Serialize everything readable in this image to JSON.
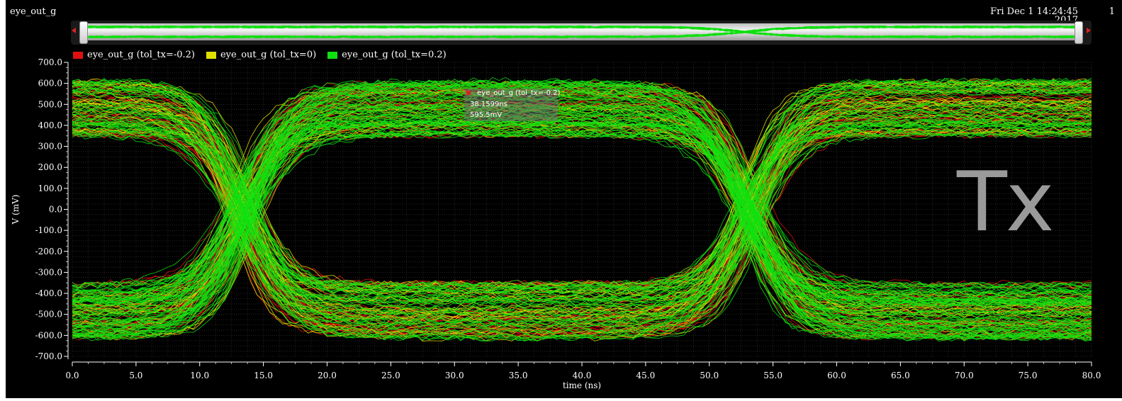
{
  "window": {
    "title": "eye_out_g",
    "timestamp": "Fri Dec 1 14:24:45",
    "timestamp_clip": "2017",
    "page_number": "1"
  },
  "watermark": "Tx",
  "cursor_readout": {
    "series": "eye_out_g (tol_tx=-0.2)",
    "time": "38.1599ns",
    "value": "595.5mV"
  },
  "chart_data": {
    "type": "line",
    "subtype": "eye-diagram",
    "xlabel": "time (ns)",
    "ylabel": "V (mV)",
    "xlim": [
      0,
      80
    ],
    "ylim": [
      -700,
      700
    ],
    "x_ticks": [
      "0.0",
      "5.0",
      "10.0",
      "15.0",
      "20.0",
      "25.0",
      "30.0",
      "35.0",
      "40.0",
      "45.0",
      "50.0",
      "55.0",
      "60.0",
      "65.0",
      "70.0",
      "75.0",
      "80.0"
    ],
    "y_ticks": [
      "700.0",
      "600.0",
      "500.0",
      "400.0",
      "300.0",
      "200.0",
      "100.0",
      "0.0",
      "-100.0",
      "-200.0",
      "-300.0",
      "-400.0",
      "-500.0",
      "-600.0",
      "-700.0"
    ],
    "grid": true,
    "legend_position": "top-left",
    "series": [
      {
        "name": "eye_out_g (tol_tx=-0.2)",
        "color": "#e01010",
        "high_level_mv": 560,
        "low_level_mv": -560,
        "crossings_ns": [
          13.5,
          53.2
        ]
      },
      {
        "name": "eye_out_g (tol_tx=0)",
        "color": "#e0e000",
        "high_level_mv": 500,
        "low_level_mv": -500,
        "crossings_ns": [
          13.5,
          53.2
        ]
      },
      {
        "name": "eye_out_g (tol_tx=0.2)",
        "color": "#10e010",
        "high_level_mv": 600,
        "low_level_mv": -600,
        "crossings_ns": [
          13.5,
          53.2
        ]
      }
    ],
    "eye": {
      "high_level_range_mv": [
        350,
        615
      ],
      "low_level_range_mv": [
        -615,
        -350
      ],
      "crossing_level_mv": 0,
      "unit_interval_ns": 40,
      "eye_opening_approx_mv": 700
    }
  }
}
